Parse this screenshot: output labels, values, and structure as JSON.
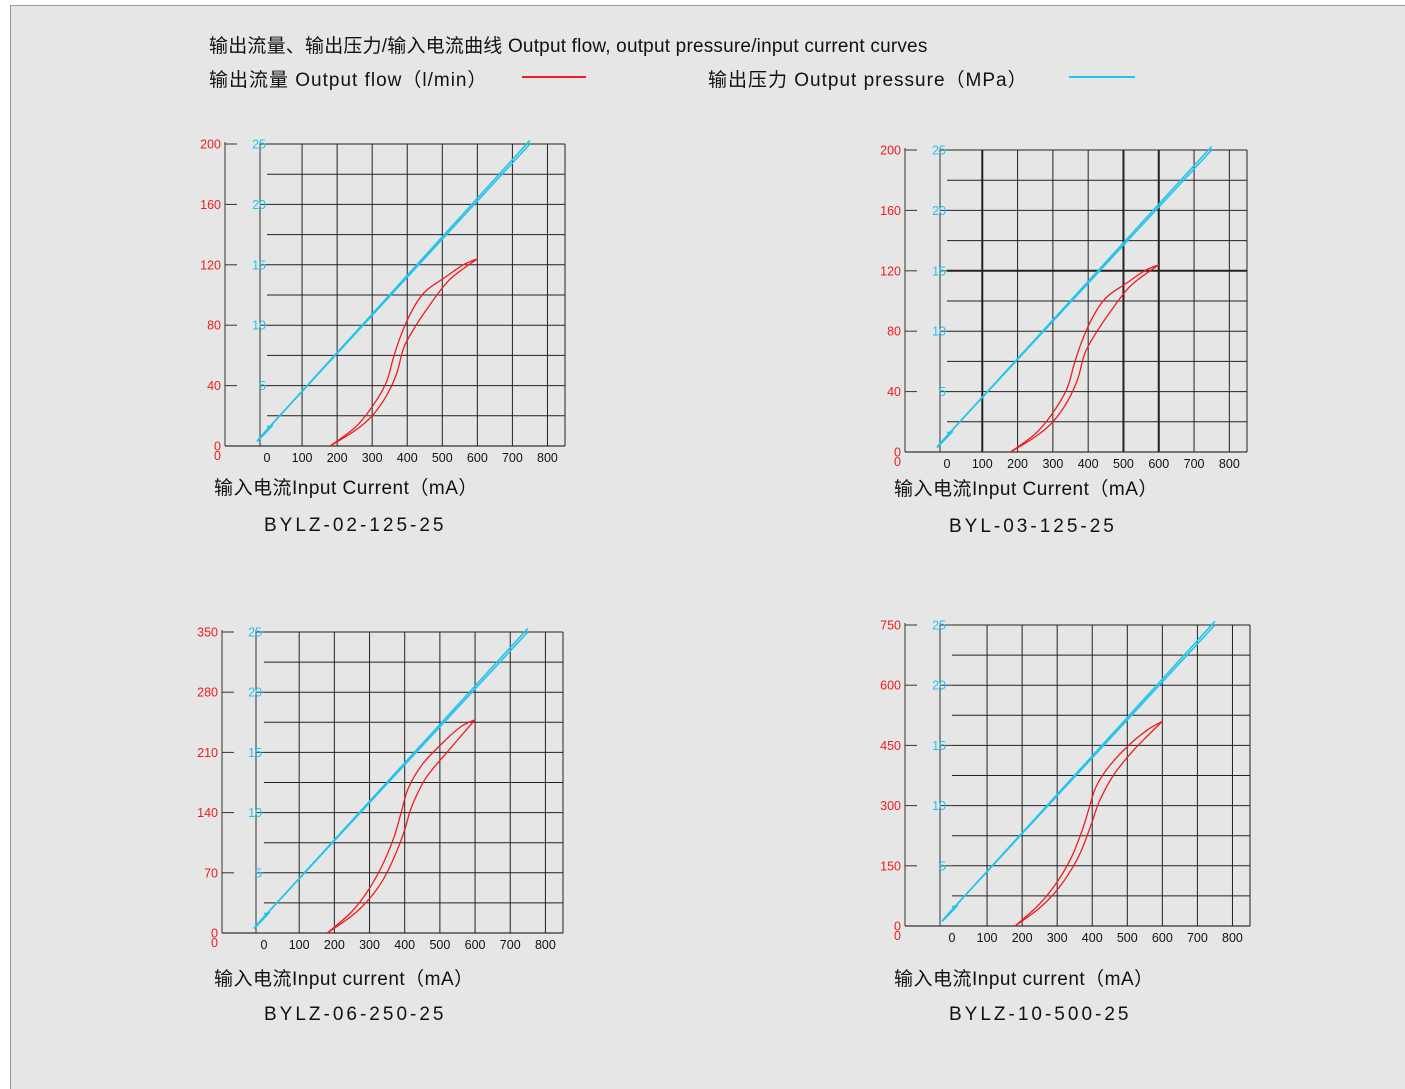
{
  "header": {
    "title": "输出流量、输出压力/输入电流曲线 Output flow, output pressure/input current curves"
  },
  "legend": {
    "flow_label": "输出流量 Output flow（l/min）",
    "pressure_label": "输出压力 Output pressure（MPa）"
  },
  "colors": {
    "flow": "#ee1c1c",
    "pressure": "#22c4ec",
    "grid": "#333333",
    "background": "#e6e6e6"
  },
  "chart_data": [
    {
      "type": "line",
      "model": "BYLZ-02-125-25",
      "xlabel": "输入电流Input Current（mA）",
      "x_ticks": [
        "0",
        "100",
        "200",
        "300",
        "400",
        "500",
        "600",
        "700",
        "800"
      ],
      "xlim": [
        0,
        800
      ],
      "flow_ticks": [
        "0",
        "40",
        "80",
        "120",
        "160",
        "200"
      ],
      "flow_lim": [
        0,
        200
      ],
      "pressure_ticks": [
        "5",
        "10",
        "15",
        "20",
        "25"
      ],
      "pressure_lim": [
        0,
        25
      ],
      "grid": true,
      "series": [
        {
          "axis": "pressure",
          "branch": "up",
          "x": [
            0,
            15,
            30,
            750
          ],
          "y": [
            1.6,
            1.7,
            2.3,
            25
          ]
        },
        {
          "axis": "pressure",
          "branch": "down",
          "x": [
            0,
            15,
            30,
            750
          ],
          "y": [
            1.6,
            1.7,
            2.3,
            25.3
          ]
        },
        {
          "axis": "flow",
          "branch": "up",
          "x": [
            180,
            250,
            300,
            340,
            370,
            390,
            420,
            460,
            520,
            600
          ],
          "y": [
            0,
            10,
            20,
            33,
            48,
            65,
            78,
            92,
            110,
            124
          ]
        },
        {
          "axis": "flow",
          "branch": "down",
          "x": [
            180,
            250,
            300,
            340,
            360,
            380,
            410,
            450,
            510,
            560,
            600
          ],
          "y": [
            0,
            12,
            26,
            42,
            58,
            72,
            88,
            102,
            112,
            120,
            124
          ]
        }
      ]
    },
    {
      "type": "line",
      "model": "BYL-03-125-25",
      "xlabel": "输入电流Input Current（mA）",
      "x_ticks": [
        "0",
        "100",
        "200",
        "300",
        "400",
        "500",
        "600",
        "700",
        "800"
      ],
      "xlim": [
        0,
        800
      ],
      "flow_ticks": [
        "0",
        "40",
        "80",
        "120",
        "160",
        "200"
      ],
      "flow_lim": [
        0,
        200
      ],
      "pressure_ticks": [
        "5",
        "10",
        "15",
        "20",
        "25"
      ],
      "pressure_lim": [
        0,
        25
      ],
      "grid": true,
      "series": [
        {
          "axis": "pressure",
          "branch": "up",
          "x": [
            0,
            15,
            30,
            750
          ],
          "y": [
            1.6,
            1.7,
            2.3,
            25
          ]
        },
        {
          "axis": "pressure",
          "branch": "down",
          "x": [
            0,
            15,
            30,
            750
          ],
          "y": [
            1.6,
            1.7,
            2.3,
            25.3
          ]
        },
        {
          "axis": "flow",
          "branch": "up",
          "x": [
            180,
            250,
            300,
            340,
            370,
            390,
            420,
            460,
            520,
            600
          ],
          "y": [
            0,
            10,
            20,
            33,
            48,
            65,
            78,
            92,
            110,
            124
          ]
        },
        {
          "axis": "flow",
          "branch": "down",
          "x": [
            180,
            250,
            300,
            340,
            360,
            380,
            410,
            450,
            510,
            560,
            600
          ],
          "y": [
            0,
            12,
            26,
            42,
            58,
            72,
            88,
            102,
            112,
            120,
            124
          ]
        }
      ]
    },
    {
      "type": "line",
      "model": "BYLZ-06-250-25",
      "xlabel": "输入电流Input current（mA）",
      "x_ticks": [
        "0",
        "100",
        "200",
        "300",
        "400",
        "500",
        "600",
        "700",
        "800"
      ],
      "xlim": [
        0,
        800
      ],
      "flow_ticks": [
        "0",
        "70",
        "140",
        "210",
        "280",
        "350"
      ],
      "flow_lim": [
        0,
        350
      ],
      "pressure_ticks": [
        "5",
        "10",
        "15",
        "20",
        "25"
      ],
      "pressure_lim": [
        0,
        25
      ],
      "grid": true,
      "series": [
        {
          "axis": "pressure",
          "branch": "up",
          "x": [
            0,
            15,
            30,
            750
          ],
          "y": [
            1.6,
            1.7,
            2.3,
            25
          ]
        },
        {
          "axis": "pressure",
          "branch": "down",
          "x": [
            0,
            15,
            30,
            750
          ],
          "y": [
            1.6,
            1.7,
            2.3,
            25.3
          ]
        },
        {
          "axis": "flow",
          "branch": "up",
          "x": [
            180,
            250,
            300,
            340,
            370,
            400,
            420,
            460,
            520,
            600
          ],
          "y": [
            0,
            20,
            40,
            63,
            88,
            120,
            147,
            180,
            210,
            248
          ]
        },
        {
          "axis": "flow",
          "branch": "down",
          "x": [
            180,
            250,
            300,
            340,
            370,
            390,
            410,
            450,
            510,
            560,
            600
          ],
          "y": [
            0,
            25,
            52,
            82,
            112,
            140,
            168,
            196,
            222,
            240,
            248
          ]
        }
      ]
    },
    {
      "type": "line",
      "model": "BYLZ-10-500-25",
      "xlabel": "输入电流Input current（mA）",
      "x_ticks": [
        "0",
        "100",
        "200",
        "300",
        "400",
        "500",
        "600",
        "700",
        "800"
      ],
      "xlim": [
        0,
        800
      ],
      "flow_ticks": [
        "0",
        "150",
        "300",
        "450",
        "600",
        "750"
      ],
      "flow_lim": [
        0,
        750
      ],
      "pressure_ticks": [
        "5",
        "10",
        "15",
        "20",
        "25"
      ],
      "pressure_lim": [
        0,
        25
      ],
      "grid": true,
      "series": [
        {
          "axis": "pressure",
          "branch": "up",
          "x": [
            0,
            15,
            30,
            750
          ],
          "y": [
            1.6,
            1.7,
            2.3,
            25
          ]
        },
        {
          "axis": "pressure",
          "branch": "down",
          "x": [
            0,
            15,
            30,
            750
          ],
          "y": [
            1.6,
            1.7,
            2.3,
            25.3
          ]
        },
        {
          "axis": "flow",
          "branch": "up",
          "x": [
            180,
            250,
            300,
            340,
            370,
            400,
            420,
            460,
            520,
            600
          ],
          "y": [
            0,
            45,
            90,
            140,
            190,
            260,
            310,
            375,
            440,
            510
          ]
        },
        {
          "axis": "flow",
          "branch": "down",
          "x": [
            180,
            250,
            300,
            340,
            370,
            390,
            410,
            450,
            510,
            560,
            600
          ],
          "y": [
            0,
            55,
            110,
            170,
            235,
            290,
            345,
            400,
            455,
            490,
            510
          ]
        }
      ]
    }
  ]
}
